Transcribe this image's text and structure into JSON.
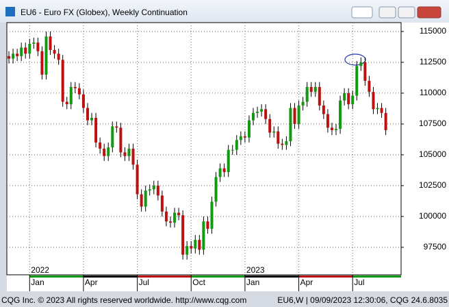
{
  "window_title": "EU6 - Euro FX (Globex), Weekly Continuation",
  "footer_left": "CQG Inc. © 2023 All rights reserved worldwide. http://www.cqg.com",
  "footer_right": "EU6,W | 09/09/2023 12:30:06, CQG 24.6.8035",
  "chart_data": {
    "type": "candlestick",
    "up_color": "#119911",
    "down_color": "#bb1111",
    "wick_color": "#000000",
    "grid": true,
    "ylim": [
      95270,
      115720
    ],
    "yticks": [
      97500,
      100000,
      102500,
      105000,
      107500,
      110000,
      112500,
      115000
    ],
    "xlim": [
      -0.5,
      94.7
    ],
    "xticks": [
      {
        "value": 5,
        "label": "Jan"
      },
      {
        "value": 18,
        "label": "Apr"
      },
      {
        "value": 31,
        "label": "Jul"
      },
      {
        "value": 44,
        "label": "Oct"
      },
      {
        "value": 57,
        "label": "Jan"
      },
      {
        "value": 70,
        "label": "Apr"
      },
      {
        "value": 83,
        "label": "Jul"
      }
    ],
    "year_labels": [
      {
        "value": 5,
        "label": "2022"
      },
      {
        "value": 57,
        "label": "2023"
      }
    ],
    "open": [
      113000,
      112800,
      113200,
      113000,
      113700,
      113200,
      114000,
      114100,
      113400,
      111500,
      114600,
      113500,
      113200,
      112700,
      109300,
      109100,
      110500,
      110400,
      109900,
      108800,
      107800,
      108000,
      106000,
      105500,
      104900,
      105600,
      107300,
      107200,
      105200,
      104900,
      105500,
      104200,
      101800,
      100800,
      102100,
      102200,
      102500,
      101700,
      100400,
      99600,
      99500,
      100300,
      100100,
      96900,
      97600,
      97400,
      98100,
      97300,
      99600,
      99000,
      101200,
      103200,
      103900,
      103600,
      105400,
      105400,
      106200,
      106500,
      106400,
      107800,
      108400,
      108500,
      108700,
      107900,
      106800,
      106900,
      105900,
      105800,
      106100,
      108800,
      107500,
      109000,
      109300,
      110500,
      110100,
      110500,
      109000,
      108300,
      107200,
      107000,
      107100,
      109400,
      110000,
      109100,
      109800,
      112200,
      112500,
      111000,
      110100,
      108700,
      108800,
      108400
    ],
    "high": [
      113400,
      113600,
      113600,
      114100,
      114100,
      114400,
      114500,
      114500,
      113800,
      115000,
      115000,
      113900,
      113600,
      113100,
      109700,
      110900,
      110900,
      110800,
      110300,
      109200,
      108400,
      108400,
      106400,
      105900,
      106000,
      107700,
      107700,
      107600,
      105600,
      105900,
      105900,
      104600,
      102200,
      102500,
      102600,
      102900,
      102900,
      102100,
      100800,
      100000,
      100700,
      100700,
      100500,
      98000,
      98000,
      98500,
      98500,
      100000,
      100000,
      101600,
      103600,
      104300,
      104300,
      105800,
      105800,
      106600,
      106900,
      106900,
      108200,
      108800,
      108900,
      109100,
      109100,
      108300,
      107300,
      107300,
      106300,
      106500,
      109200,
      109200,
      109400,
      109700,
      110900,
      110900,
      110900,
      110900,
      109400,
      108700,
      107600,
      107500,
      109800,
      110400,
      110400,
      110200,
      112600,
      112900,
      112900,
      111400,
      110500,
      109200,
      109200,
      108800
    ],
    "low": [
      112400,
      112400,
      112600,
      112600,
      112800,
      112800,
      113600,
      113000,
      111100,
      111100,
      113100,
      112800,
      112300,
      108900,
      108700,
      108700,
      110000,
      109500,
      108400,
      107400,
      107400,
      105600,
      105100,
      104500,
      104500,
      105200,
      106800,
      104800,
      104500,
      104500,
      103800,
      101400,
      100400,
      100400,
      101700,
      101800,
      101300,
      100000,
      99200,
      99100,
      99100,
      99700,
      96500,
      96500,
      97000,
      97000,
      96900,
      96900,
      98600,
      98600,
      100800,
      102800,
      103200,
      103200,
      105000,
      105000,
      105800,
      106000,
      106000,
      107400,
      108000,
      108100,
      107500,
      106400,
      106400,
      105500,
      105400,
      105400,
      105700,
      107100,
      107100,
      108600,
      108900,
      109700,
      109700,
      108600,
      107900,
      106800,
      106600,
      106600,
      106700,
      109000,
      108700,
      108700,
      109400,
      111800,
      110600,
      109700,
      108300,
      108300,
      108000,
      106600
    ],
    "close": [
      112800,
      113200,
      113000,
      113700,
      113200,
      114000,
      114100,
      113400,
      111500,
      114600,
      113500,
      113200,
      112700,
      109300,
      109100,
      110500,
      110400,
      109900,
      108800,
      107800,
      108000,
      106000,
      105500,
      104900,
      105600,
      107300,
      107200,
      105200,
      104900,
      105500,
      104200,
      101800,
      100800,
      102100,
      102200,
      102500,
      101700,
      100400,
      99600,
      99500,
      100300,
      100100,
      96900,
      97600,
      97400,
      98100,
      97300,
      99600,
      99000,
      101200,
      103200,
      103900,
      103600,
      105400,
      105400,
      106200,
      106500,
      106400,
      107800,
      108400,
      108500,
      108700,
      107900,
      106800,
      106900,
      105900,
      105800,
      106100,
      108800,
      107500,
      109000,
      109300,
      110500,
      110100,
      110500,
      109000,
      108300,
      107200,
      107000,
      107100,
      109400,
      110000,
      109100,
      109800,
      112200,
      112500,
      111000,
      110100,
      108700,
      108800,
      108400,
      107000
    ]
  }
}
